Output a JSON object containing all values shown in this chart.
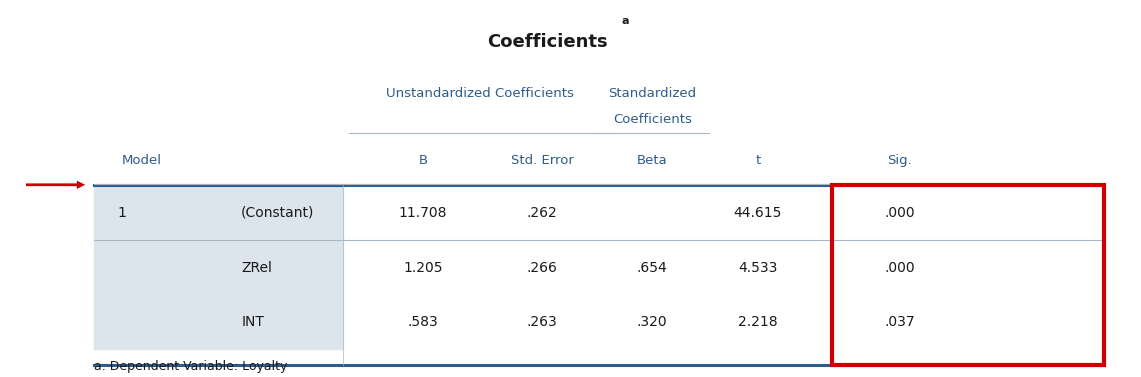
{
  "title": "Coefficients",
  "title_superscript": "a",
  "footnote": "a. Dependent Variable: Loyalty",
  "col_headers_row1_unstd": "Unstandardized Coefficients",
  "col_headers_row1_std1": "Standardized",
  "col_headers_row1_std2": "Coefficients",
  "col_headers_row2": [
    "Model",
    "B",
    "Std. Error",
    "Beta",
    "t",
    "Sig."
  ],
  "rows": [
    [
      "1",
      "(Constant)",
      "11.708",
      ".262",
      "",
      "44.615",
      ".000"
    ],
    [
      "",
      "ZRel",
      "1.205",
      ".266",
      ".654",
      "4.533",
      ".000"
    ],
    [
      "",
      "INT",
      ".583",
      ".263",
      ".320",
      "2.218",
      ".037"
    ]
  ],
  "bg_color": "#ffffff",
  "header_text_color": "#2E5C8A",
  "cell_text_color": "#1a1a1a",
  "label_bg_color": "#dce4ec",
  "thick_line_color": "#2E5C8A",
  "thin_line_color": "#aab8c5",
  "red_box_color": "#cc0000",
  "arrow_color": "#cc0000"
}
